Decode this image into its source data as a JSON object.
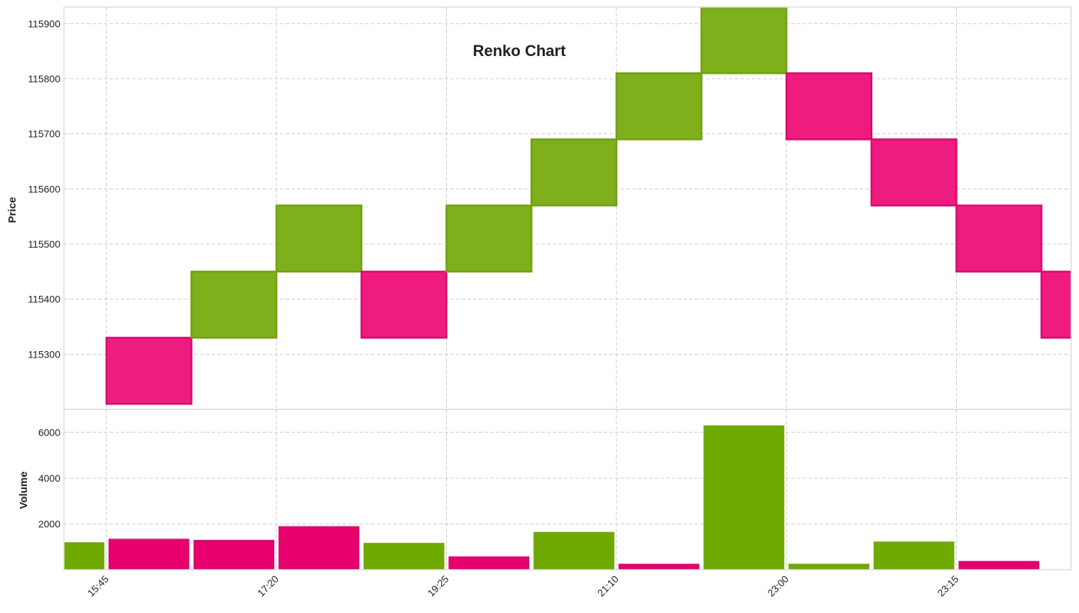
{
  "chart_data": {
    "type": "renko",
    "title": "Renko Chart",
    "colors": {
      "up_fill": "#7db01b",
      "up_edge": "#6fa30a",
      "down_fill": "#ee1c7e",
      "down_edge": "#e5036f",
      "volume_up": "#6eaa00",
      "volume_down": "#e8006f"
    },
    "price_panel": {
      "ylabel": "Price",
      "ylim": [
        115200,
        115930
      ],
      "yticks": [
        115300,
        115400,
        115500,
        115600,
        115700,
        115800,
        115900
      ],
      "brick_size": 120,
      "bricks": [
        {
          "index": 1,
          "low": 115210,
          "high": 115330,
          "direction": "down"
        },
        {
          "index": 2,
          "low": 115330,
          "high": 115450,
          "direction": "up"
        },
        {
          "index": 3,
          "low": 115450,
          "high": 115570,
          "direction": "up"
        },
        {
          "index": 4,
          "low": 115330,
          "high": 115450,
          "direction": "down"
        },
        {
          "index": 5,
          "low": 115450,
          "high": 115570,
          "direction": "up"
        },
        {
          "index": 6,
          "low": 115570,
          "high": 115690,
          "direction": "up"
        },
        {
          "index": 7,
          "low": 115690,
          "high": 115810,
          "direction": "up"
        },
        {
          "index": 8,
          "low": 115810,
          "high": 115930,
          "direction": "up"
        },
        {
          "index": 9,
          "low": 115690,
          "high": 115810,
          "direction": "down"
        },
        {
          "index": 10,
          "low": 115570,
          "high": 115690,
          "direction": "down"
        },
        {
          "index": 11,
          "low": 115450,
          "high": 115570,
          "direction": "down"
        },
        {
          "index": 12,
          "low": 115330,
          "high": 115450,
          "direction": "down"
        }
      ]
    },
    "volume_panel": {
      "ylabel": "Volume",
      "ylim": [
        0,
        7000
      ],
      "yticks": [
        2000,
        4000,
        6000
      ],
      "bars": [
        {
          "value": 1200,
          "direction": "up"
        },
        {
          "value": 1350,
          "direction": "down"
        },
        {
          "value": 1300,
          "direction": "down"
        },
        {
          "value": 1900,
          "direction": "down"
        },
        {
          "value": 1170,
          "direction": "up"
        },
        {
          "value": 580,
          "direction": "down"
        },
        {
          "value": 1650,
          "direction": "up"
        },
        {
          "value": 260,
          "direction": "down"
        },
        {
          "value": 6300,
          "direction": "up"
        },
        {
          "value": 260,
          "direction": "up"
        },
        {
          "value": 1230,
          "direction": "up"
        },
        {
          "value": 380,
          "direction": "down"
        }
      ]
    },
    "x_axis": {
      "range": [
        0,
        11.85
      ],
      "ticks": [
        {
          "position": 0.5,
          "label": "15:45"
        },
        {
          "position": 2.5,
          "label": "17:20"
        },
        {
          "position": 4.5,
          "label": "19:25"
        },
        {
          "position": 6.5,
          "label": "21:10"
        },
        {
          "position": 8.5,
          "label": "23:00"
        },
        {
          "position": 10.5,
          "label": "23:15"
        }
      ]
    },
    "grid": true
  }
}
